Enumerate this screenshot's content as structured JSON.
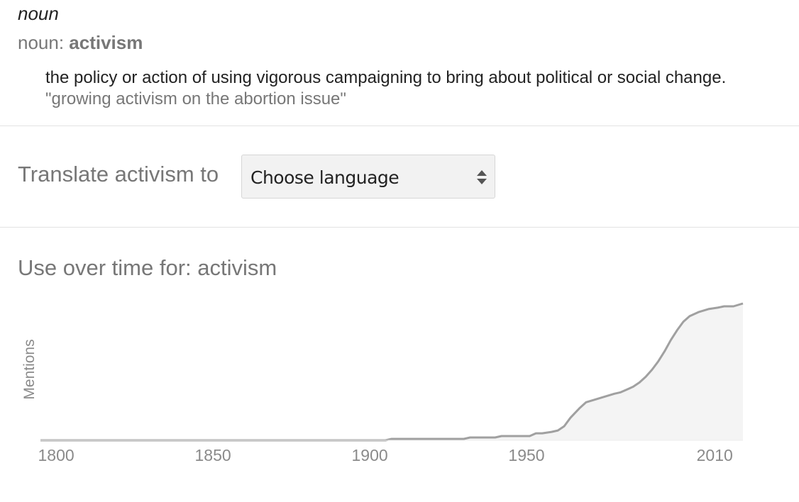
{
  "definition_block": {
    "part_of_speech": "noun",
    "noun_prefix": "noun: ",
    "headword": "activism",
    "definition": "the policy or action of using vigorous campaigning to bring about political or social change.",
    "example": "\"growing activism on the abortion issue\""
  },
  "translate": {
    "label": "Translate activism to",
    "select_value": "Choose language",
    "icon": "updown-arrows-icon"
  },
  "usage": {
    "title": "Use over time for: activism"
  },
  "colors": {
    "line": "#a0a0a0",
    "fill": "#f4f4f4",
    "axis_text": "#8a8a8a",
    "divider": "#e2e2e2"
  },
  "chart_data": {
    "type": "area",
    "title": "Use over time for: activism",
    "ylabel": "Mentions",
    "xlabel": "",
    "x_ticks": [
      1800,
      1850,
      1900,
      1950,
      2010
    ],
    "xlim": [
      1795,
      2019
    ],
    "ylim": [
      0,
      100
    ],
    "y_ticks_shown": false,
    "grid": false,
    "x": [
      1795,
      1850,
      1905,
      1907,
      1930,
      1932,
      1940,
      1942,
      1951,
      1953,
      1955,
      1958,
      1960,
      1962,
      1964,
      1967,
      1969,
      1972,
      1975,
      1978,
      1980,
      1982,
      1984,
      1986,
      1988,
      1990,
      1992,
      1994,
      1996,
      1998,
      2000,
      2002,
      2005,
      2008,
      2011,
      2013,
      2016,
      2019
    ],
    "values": [
      0,
      0,
      0,
      1,
      1,
      2,
      2,
      3,
      3,
      5,
      5,
      6,
      7,
      10,
      16,
      23,
      27,
      29,
      31,
      33,
      34,
      36,
      38,
      41,
      45,
      50,
      56,
      63,
      71,
      78,
      84,
      88,
      91,
      93,
      94,
      95,
      95,
      97
    ]
  }
}
